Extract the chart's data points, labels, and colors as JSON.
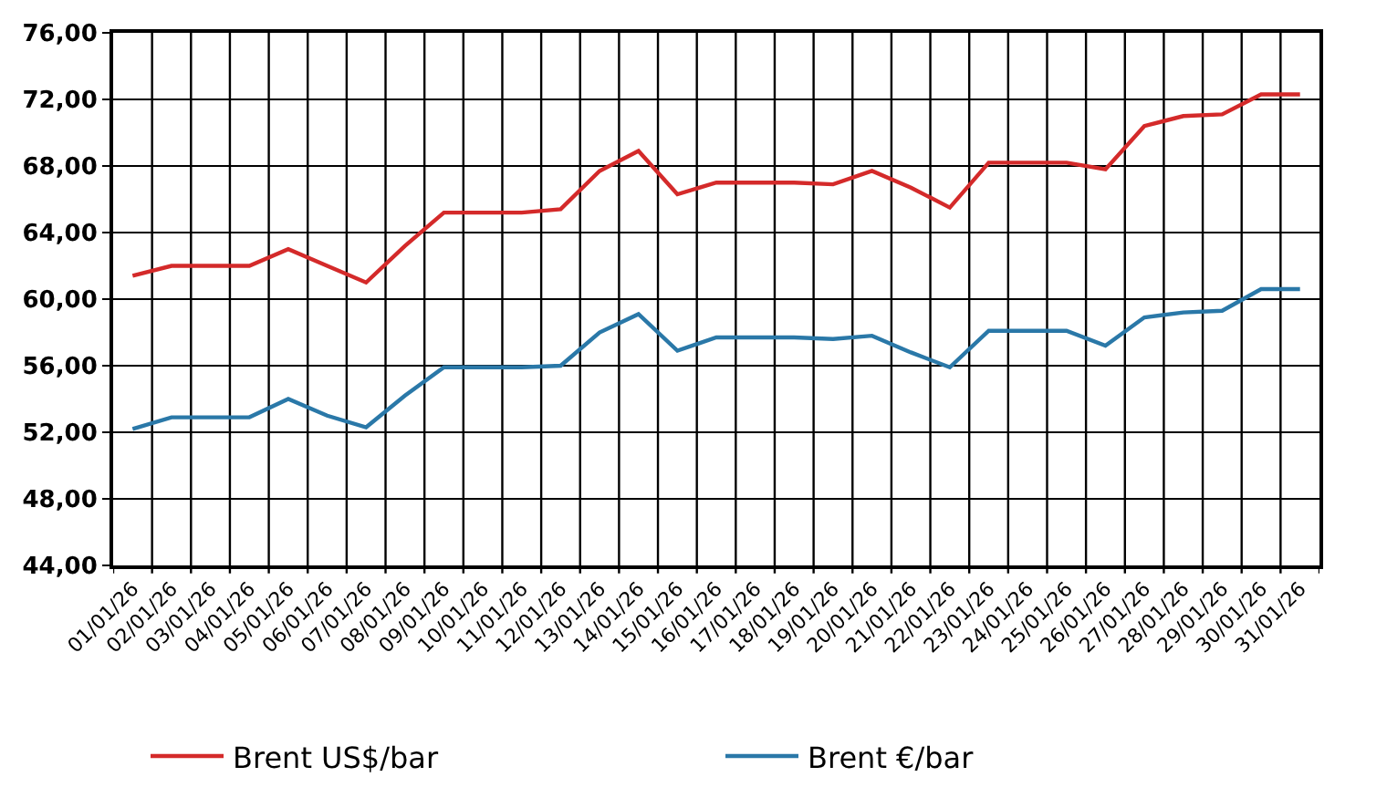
{
  "chart_data": {
    "type": "line",
    "categories": [
      "01/01/26",
      "02/01/26",
      "03/01/26",
      "04/01/26",
      "05/01/26",
      "06/01/26",
      "07/01/26",
      "08/01/26",
      "09/01/26",
      "10/01/26",
      "11/01/26",
      "12/01/26",
      "13/01/26",
      "14/01/26",
      "15/01/26",
      "16/01/26",
      "17/01/26",
      "18/01/26",
      "19/01/26",
      "20/01/26",
      "21/01/26",
      "22/01/26",
      "23/01/26",
      "24/01/26",
      "25/01/26",
      "26/01/26",
      "27/01/26",
      "28/01/26",
      "29/01/26",
      "30/01/26",
      "31/01/26"
    ],
    "series": [
      {
        "name": "Brent US$/bar",
        "color": "#d42a2a",
        "values": [
          61.4,
          62.0,
          62.0,
          62.0,
          63.0,
          62.0,
          61.0,
          63.2,
          65.2,
          65.2,
          65.2,
          65.4,
          67.7,
          68.9,
          66.3,
          67.0,
          67.0,
          67.0,
          66.9,
          67.7,
          66.7,
          65.5,
          68.2,
          68.2,
          68.2,
          67.8,
          70.4,
          71.0,
          71.1,
          72.3,
          72.3
        ]
      },
      {
        "name": "Brent €/bar",
        "color": "#2a78a8",
        "values": [
          52.2,
          52.9,
          52.9,
          52.9,
          54.0,
          53.0,
          52.3,
          54.2,
          55.9,
          55.9,
          55.9,
          56.0,
          58.0,
          59.1,
          56.9,
          57.7,
          57.7,
          57.7,
          57.6,
          57.8,
          56.8,
          55.9,
          58.1,
          58.1,
          58.1,
          57.2,
          58.9,
          59.2,
          59.3,
          60.6,
          60.6
        ]
      }
    ],
    "ylim": [
      44,
      76
    ],
    "yticks": [
      {
        "value": 44,
        "label": "44,00"
      },
      {
        "value": 48,
        "label": "48,00"
      },
      {
        "value": 52,
        "label": "52,00"
      },
      {
        "value": 56,
        "label": "56,00"
      },
      {
        "value": 60,
        "label": "60,00"
      },
      {
        "value": 64,
        "label": "64,00"
      },
      {
        "value": 68,
        "label": "68,00"
      },
      {
        "value": 72,
        "label": "72,00"
      },
      {
        "value": 76,
        "label": "76,00"
      }
    ],
    "grid": true,
    "legend": "bottom",
    "marker": "none",
    "line_style": "solid"
  }
}
